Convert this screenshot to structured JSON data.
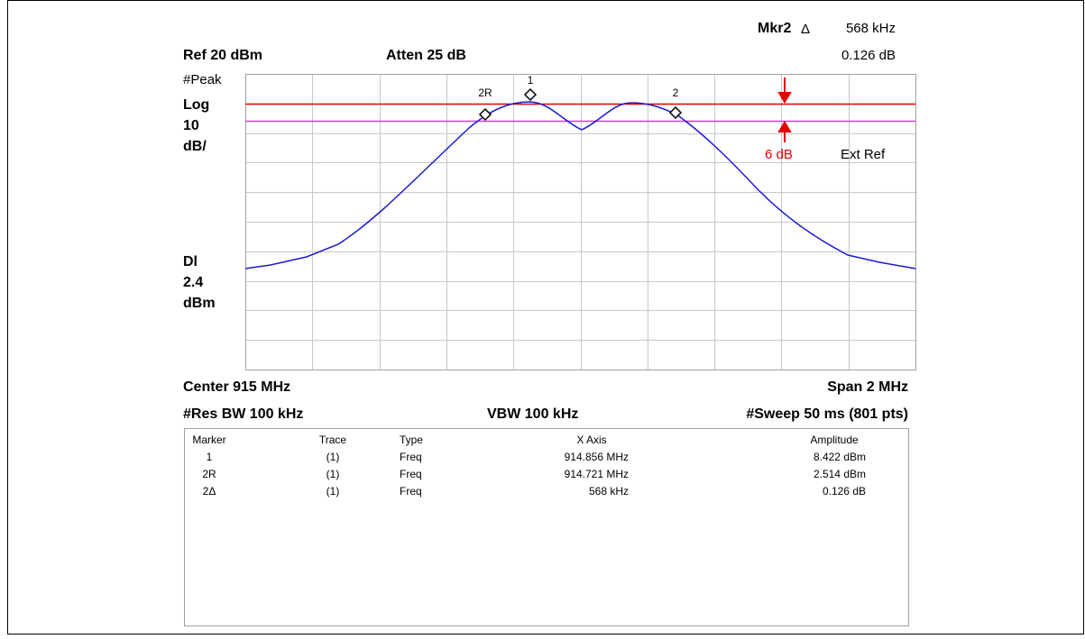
{
  "header": {
    "marker_label": "Mkr2",
    "marker_delta": "Δ",
    "marker_value": "568 kHz",
    "marker_amplitude": "0.126 dB",
    "ref": "Ref 20 dBm",
    "atten": "Atten 25 dB"
  },
  "left_labels": {
    "detector": "#Peak",
    "scale_type": "Log",
    "scale_value": "10",
    "scale_unit": "dB/",
    "display_line": "Dl",
    "display_line_value": "2.4",
    "display_line_unit": "dBm"
  },
  "markers": [
    "1",
    "2R",
    "2"
  ],
  "annotations": {
    "offset": "6 dB",
    "ext_ref": "Ext Ref"
  },
  "footer": {
    "center": "Center 915 MHz",
    "span": "Span 2 MHz",
    "res_bw": "#Res BW 100 kHz",
    "vbw": "VBW 100 kHz",
    "sweep": "#Sweep 50 ms (801 pts)"
  },
  "table": {
    "headers": [
      "Marker",
      "Trace",
      "Type",
      "X Axis",
      "Amplitude"
    ],
    "rows": [
      [
        "1",
        "(1)",
        "Freq",
        "914.856 MHz",
        "8.422 dBm"
      ],
      [
        "2R",
        "(1)",
        "Freq",
        "914.721 MHz",
        "2.514 dBm"
      ],
      [
        "2Δ",
        "(1)",
        "Freq",
        "568 kHz",
        "0.126 dB"
      ]
    ]
  }
}
